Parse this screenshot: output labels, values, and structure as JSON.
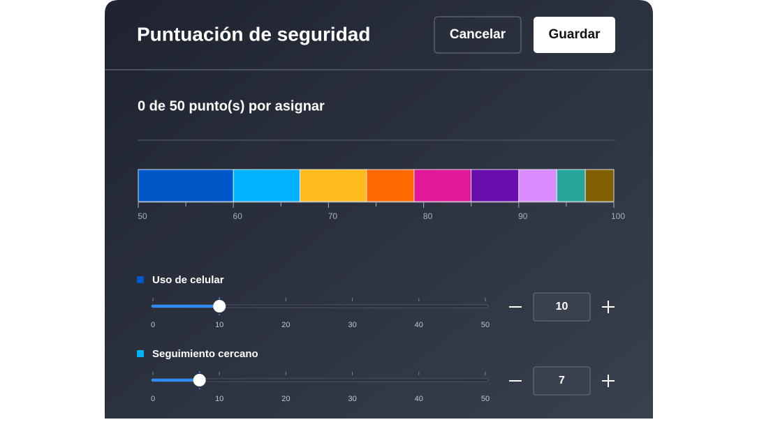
{
  "header": {
    "title": "Puntuación de seguridad",
    "cancel": "Cancelar",
    "save": "Guardar"
  },
  "remaining": "0 de 50 punto(s) por asignar",
  "allocation": {
    "xlim": [
      50,
      100
    ],
    "xticks": [
      50,
      60,
      70,
      80,
      90,
      100
    ],
    "minor_xticks": [
      55,
      65,
      75,
      85,
      95
    ],
    "segments": [
      {
        "name": "Uso de celular",
        "color": "#0057c8",
        "value": 10
      },
      {
        "name": "Seguimiento cercano",
        "color": "#00b2ff",
        "value": 7
      },
      {
        "color": "#ffbb1c",
        "value": 7
      },
      {
        "color": "#ff6a00",
        "value": 5
      },
      {
        "color": "#e0189a",
        "value": 6
      },
      {
        "color": "#6a0dad",
        "value": 5
      },
      {
        "color": "#d98cff",
        "value": 4
      },
      {
        "color": "#26a69a",
        "value": 3
      },
      {
        "color": "#7f5f00",
        "value": 3
      }
    ]
  },
  "slider_range": [
    0,
    50
  ],
  "slider_ticks": [
    0,
    10,
    20,
    30,
    40,
    50
  ]
}
